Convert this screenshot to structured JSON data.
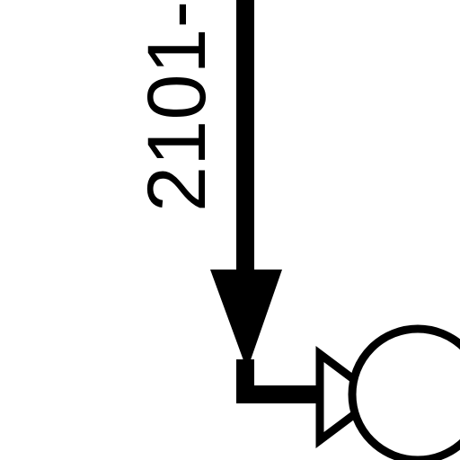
{
  "diagram": {
    "line_label": "2101-",
    "colors": {
      "ink": "#000000",
      "background": "#ffffff"
    }
  }
}
